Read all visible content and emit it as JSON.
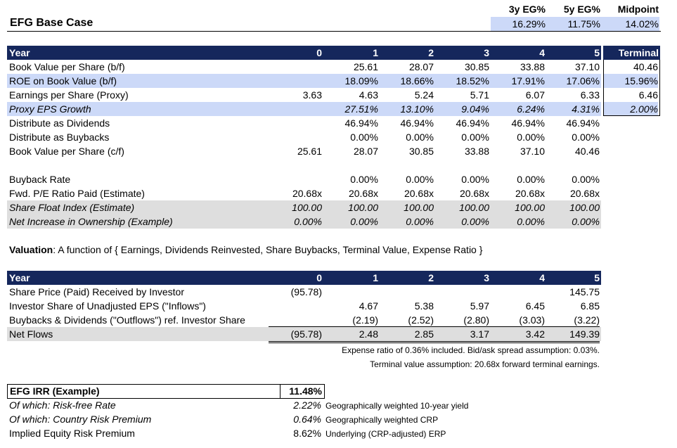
{
  "title": "EFG Base Case",
  "summary": {
    "headers": [
      "3y EG%",
      "5y EG%",
      "Midpoint"
    ],
    "values": [
      "16.29%",
      "11.75%",
      "14.02%"
    ]
  },
  "table1": {
    "header": {
      "label": "Year",
      "cols": [
        "0",
        "1",
        "2",
        "3",
        "4",
        "5"
      ],
      "terminal": "Terminal"
    },
    "rows": [
      {
        "label": "Book Value per Share (b/f)",
        "cells": [
          "",
          "25.61",
          "28.07",
          "30.85",
          "33.88",
          "37.10"
        ],
        "terminal": "40.46"
      },
      {
        "label": "ROE on Book Value (b/f)",
        "cells": [
          "",
          "18.09%",
          "18.66%",
          "18.52%",
          "17.91%",
          "17.06%"
        ],
        "terminal": "15.96%"
      },
      {
        "label": "Earnings per Share (Proxy)",
        "cells": [
          "3.63",
          "4.63",
          "5.24",
          "5.71",
          "6.07",
          "6.33"
        ],
        "terminal": "6.46"
      },
      {
        "label": "Proxy EPS Growth",
        "cells": [
          "",
          "27.51%",
          "13.10%",
          "9.04%",
          "6.24%",
          "4.31%"
        ],
        "terminal": "2.00%"
      },
      {
        "label": "Distribute as Dividends",
        "cells": [
          "",
          "46.94%",
          "46.94%",
          "46.94%",
          "46.94%",
          "46.94%"
        ],
        "terminal": ""
      },
      {
        "label": "Distribute as Buybacks",
        "cells": [
          "",
          "0.00%",
          "0.00%",
          "0.00%",
          "0.00%",
          "0.00%"
        ],
        "terminal": ""
      },
      {
        "label": "Book Value per Share (c/f)",
        "cells": [
          "25.61",
          "28.07",
          "30.85",
          "33.88",
          "37.10",
          "40.46"
        ],
        "terminal": ""
      }
    ]
  },
  "table2": {
    "rows": [
      {
        "label": "Buyback Rate",
        "cells": [
          "",
          "0.00%",
          "0.00%",
          "0.00%",
          "0.00%",
          "0.00%"
        ]
      },
      {
        "label": "Fwd. P/E Ratio Paid (Estimate)",
        "cells": [
          "20.68x",
          "20.68x",
          "20.68x",
          "20.68x",
          "20.68x",
          "20.68x"
        ]
      },
      {
        "label": "Share Float Index (Estimate)",
        "cells": [
          "100.00",
          "100.00",
          "100.00",
          "100.00",
          "100.00",
          "100.00"
        ]
      },
      {
        "label": "Net Increase in Ownership (Example)",
        "cells": [
          "0.00%",
          "0.00%",
          "0.00%",
          "0.00%",
          "0.00%",
          "0.00%"
        ]
      }
    ]
  },
  "valuation": {
    "bold": "Valuation",
    "text": ": A function of { Earnings, Dividends Reinvested, Share Buybacks, Terminal Value, Expense Ratio }"
  },
  "table3": {
    "header": {
      "label": "Year",
      "cols": [
        "0",
        "1",
        "2",
        "3",
        "4",
        "5"
      ]
    },
    "rows": [
      {
        "label": "Share Price (Paid) Received by Investor",
        "cells": [
          "(95.78)",
          "",
          "",
          "",
          "",
          "145.75"
        ]
      },
      {
        "label": "Investor Share of Unadjusted EPS (\"Inflows\")",
        "cells": [
          "",
          "4.67",
          "5.38",
          "5.97",
          "6.45",
          "6.85"
        ]
      },
      {
        "label": "Buybacks & Dividends (\"Outflows\") ref. Investor Share",
        "cells": [
          "",
          "(2.19)",
          "(2.52)",
          "(2.80)",
          "(3.03)",
          "(3.22)"
        ]
      },
      {
        "label": "Net Flows",
        "cells": [
          "(95.78)",
          "2.48",
          "2.85",
          "3.17",
          "3.42",
          "149.39"
        ]
      }
    ],
    "note1": "Expense ratio of 0.36% included. Bid/ask spread assumption: 0.03%.",
    "note2": "Terminal value assumption: 20.68x forward terminal earnings."
  },
  "irr": {
    "label": "EFG IRR (Example)",
    "value": "11.48%",
    "rows": [
      {
        "label": "Of which: Risk-free Rate",
        "value": "2.22%",
        "note": "Geographically weighted 10-year yield"
      },
      {
        "label": "Of which: Country Risk Premium",
        "value": "0.64%",
        "note": "Geographically weighted CRP"
      },
      {
        "label": "Implied Equity Risk Premium",
        "value": "8.62%",
        "note": "Underlying (CRP-adjusted) ERP"
      }
    ]
  }
}
